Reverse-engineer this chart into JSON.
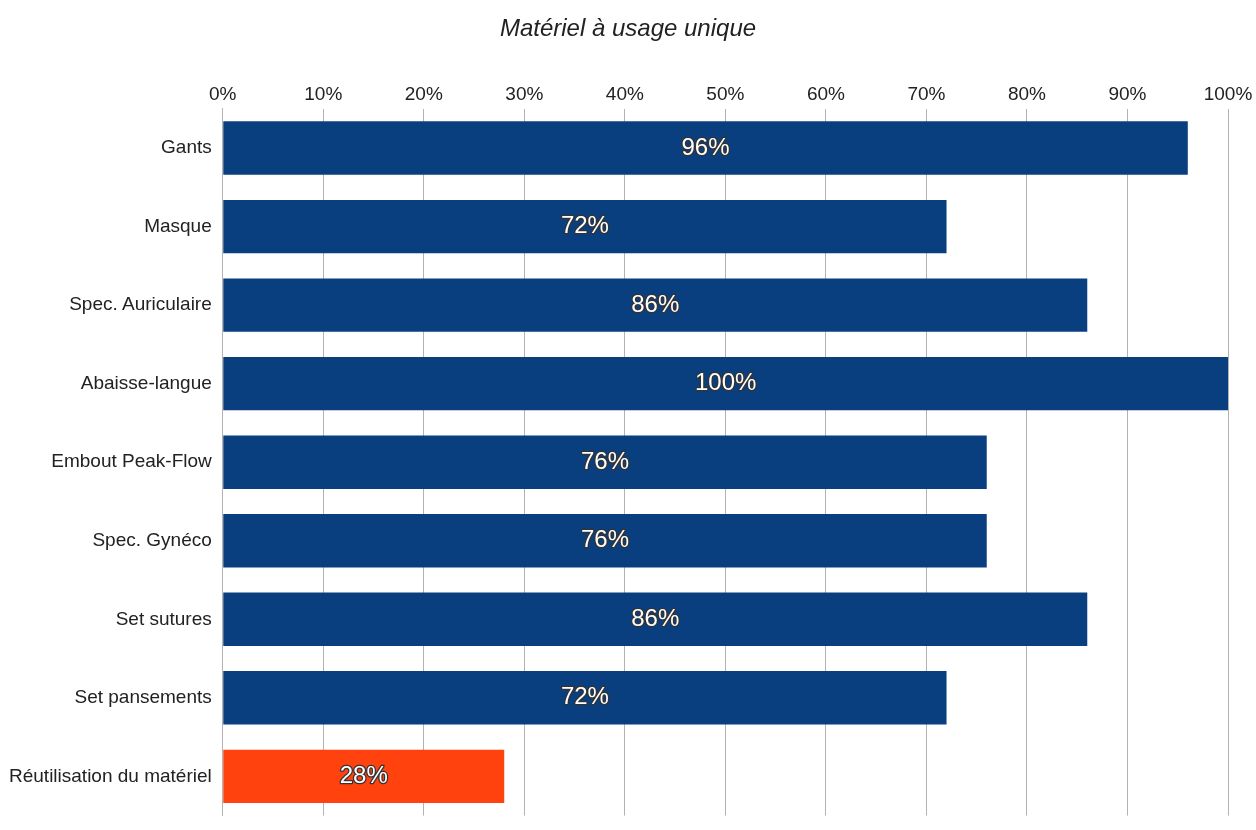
{
  "chart_data": {
    "type": "bar",
    "orientation": "horizontal",
    "title": "Matériel à usage unique",
    "categories": [
      "Gants",
      "Masque",
      "Spec. Auriculaire",
      "Abaisse-langue",
      "Embout Peak-Flow",
      "Spec. Gynéco",
      "Set sutures",
      "Set pansements",
      "Réutilisation du matériel"
    ],
    "values": [
      96,
      72,
      86,
      100,
      76,
      76,
      86,
      72,
      28
    ],
    "colors": [
      "#0a3f7f",
      "#0a3f7f",
      "#0a3f7f",
      "#0a3f7f",
      "#0a3f7f",
      "#0a3f7f",
      "#0a3f7f",
      "#0a3f7f",
      "#ff420e"
    ],
    "value_labels": [
      "96%",
      "72%",
      "86%",
      "100%",
      "76%",
      "76%",
      "86%",
      "72%",
      "28%"
    ],
    "xlim": [
      0,
      100
    ],
    "xticks": [
      {
        "value": 0,
        "label": "0%"
      },
      {
        "value": 10,
        "label": "10%"
      },
      {
        "value": 20,
        "label": "20%"
      },
      {
        "value": 30,
        "label": "30%"
      },
      {
        "value": 40,
        "label": "40%"
      },
      {
        "value": 50,
        "label": "50%"
      },
      {
        "value": 60,
        "label": "60%"
      },
      {
        "value": 70,
        "label": "70%"
      },
      {
        "value": 80,
        "label": "80%"
      },
      {
        "value": 90,
        "label": "90%"
      },
      {
        "value": 100,
        "label": "100%"
      }
    ],
    "grid": "x"
  }
}
